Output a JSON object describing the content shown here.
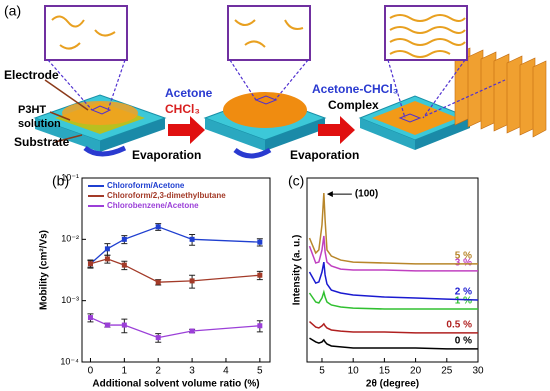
{
  "figure": {
    "panel_a": {
      "label": "(a)",
      "electrode": "Electrode",
      "p3ht_1": "P3HT",
      "p3ht_2": "solution",
      "substrate": "Substrate",
      "acetone": "Acetone",
      "chcl3": "CHCl₃",
      "evaporation_1": "Evaporation",
      "complex_1": "Acetone-CHCl₃",
      "complex_2": "Complex",
      "evaporation_2": "Evaporation"
    },
    "panel_b_label": "(b)",
    "panel_c_label": "(c)"
  },
  "chart_data": [
    {
      "type": "line",
      "xlabel": "Additional solvent volume ratio (%)",
      "ylabel": "Mobility (cm²/Vs)",
      "x": [
        0,
        0.5,
        1,
        2,
        3,
        5
      ],
      "xlim": [
        -0.25,
        5.3
      ],
      "xticks": [
        0,
        1,
        2,
        3,
        4,
        5
      ],
      "log_y": true,
      "ylim": [
        0.0001,
        0.1
      ],
      "yticks": [
        {
          "value": 0.0001,
          "label": "10⁻⁴"
        },
        {
          "value": 0.001,
          "label": "10⁻³"
        },
        {
          "value": 0.01,
          "label": "10⁻²"
        },
        {
          "value": 0.1,
          "label": "10⁻¹"
        }
      ],
      "legend": "upper-left",
      "series": [
        {
          "name": "Chloroform/Acetone",
          "color": "#1f3fd0",
          "values": [
            0.004,
            0.007,
            0.01,
            0.016,
            0.01,
            0.009
          ],
          "errors": [
            0.0006,
            0.0015,
            0.0015,
            0.002,
            0.002,
            0.0012
          ]
        },
        {
          "name": "Chloroform/2,3-dimethylbutane",
          "color": "#a33a28",
          "values": [
            0.004,
            0.0048,
            0.0038,
            0.002,
            0.0021,
            0.0026
          ],
          "errors": [
            0.0005,
            0.0007,
            0.0006,
            0.0002,
            0.0005,
            0.0004
          ]
        },
        {
          "name": "Chlorobenzene/Acetone",
          "color": "#9b3fd8",
          "values": [
            0.00053,
            0.0004,
            0.0004,
            0.00025,
            0.00032,
            0.00039
          ],
          "errors": [
            8e-05,
            3e-05,
            0.0001,
            4e-05,
            2e-05,
            8e-05
          ]
        }
      ]
    },
    {
      "type": "line",
      "xlabel": "2θ (degree)",
      "ylabel": "Intensity (a. u.)",
      "annotation": "(100)",
      "x": [
        3,
        4,
        4.5,
        5,
        5.3,
        5.5,
        5.8,
        6.5,
        8,
        10,
        15,
        20,
        25,
        30
      ],
      "xlim": [
        2.6,
        30
      ],
      "xticks": [
        5,
        10,
        15,
        20,
        25,
        30
      ],
      "ylim": [
        0,
        100
      ],
      "series": [
        {
          "name": "0 %",
          "color": "#000000",
          "values": [
            13.0,
            10.9,
            10.3,
            10.9,
            12.0,
            10.9,
            9.8,
            8.7,
            8.2,
            7.6,
            7.6,
            7.6,
            7.1,
            7.1
          ]
        },
        {
          "name": "0.5 %",
          "color": "#b02020",
          "values": [
            22.0,
            19.0,
            18.5,
            19.6,
            20.7,
            19.6,
            18.5,
            17.4,
            16.8,
            16.3,
            16.3,
            15.8,
            15.8,
            15.8
          ]
        },
        {
          "name": "1 %",
          "color": "#30c030",
          "values": [
            37.5,
            32.6,
            32.1,
            34.8,
            38.0,
            35.3,
            32.6,
            31.0,
            29.9,
            29.3,
            28.8,
            28.8,
            28.8,
            28.8
          ]
        },
        {
          "name": "2 %",
          "color": "#1a1ad0",
          "values": [
            48.9,
            42.9,
            43.5,
            48.9,
            54.3,
            47.3,
            42.4,
            39.1,
            37.5,
            36.4,
            35.3,
            34.8,
            34.2,
            33.7
          ]
        },
        {
          "name": "3 %",
          "color": "#c040c0",
          "values": [
            63.0,
            53.8,
            54.3,
            60.9,
            68.5,
            59.8,
            54.3,
            52.2,
            50.5,
            50.0,
            50.0,
            49.5,
            49.5,
            49.5
          ]
        },
        {
          "name": "5 %",
          "color": "#b8862a",
          "values": [
            67.4,
            59.2,
            60.9,
            74.5,
            91.8,
            77.2,
            60.9,
            57.6,
            55.4,
            54.3,
            53.8,
            53.3,
            53.3,
            53.3
          ]
        }
      ]
    }
  ]
}
